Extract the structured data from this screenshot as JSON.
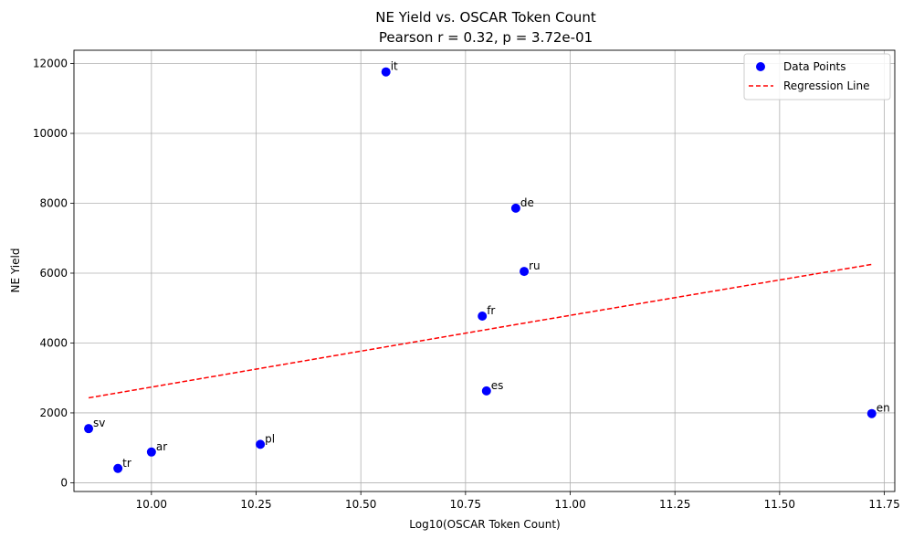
{
  "chart_data": {
    "type": "scatter",
    "title": "NE Yield vs. OSCAR Token Count",
    "subtitle": "Pearson r = 0.32, p = 3.72e-01",
    "xlabel": "Log10(OSCAR Token Count)",
    "ylabel": "NE Yield",
    "xlim": [
      9.815,
      11.775
    ],
    "ylim": [
      -250,
      12380
    ],
    "xticks": [
      10.0,
      10.25,
      10.5,
      10.75,
      11.0,
      11.25,
      11.5,
      11.75
    ],
    "xtick_labels": [
      "10.00",
      "10.25",
      "10.50",
      "10.75",
      "11.00",
      "11.25",
      "11.50",
      "11.75"
    ],
    "yticks": [
      0,
      2000,
      4000,
      6000,
      8000,
      10000,
      12000
    ],
    "ytick_labels": [
      "0",
      "2000",
      "4000",
      "6000",
      "8000",
      "10000",
      "12000"
    ],
    "grid": true,
    "legend_position": "top-right",
    "series": [
      {
        "name": "Data Points",
        "kind": "scatter",
        "color": "#0000ff",
        "points": [
          {
            "label": "it",
            "x": 10.56,
            "y": 11760
          },
          {
            "label": "de",
            "x": 10.87,
            "y": 7860
          },
          {
            "label": "ru",
            "x": 10.89,
            "y": 6050
          },
          {
            "label": "fr",
            "x": 10.79,
            "y": 4770
          },
          {
            "label": "es",
            "x": 10.8,
            "y": 2630
          },
          {
            "label": "en",
            "x": 11.72,
            "y": 1980
          },
          {
            "label": "sv",
            "x": 9.85,
            "y": 1550
          },
          {
            "label": "pl",
            "x": 10.26,
            "y": 1100
          },
          {
            "label": "ar",
            "x": 10.0,
            "y": 880
          },
          {
            "label": "tr",
            "x": 9.92,
            "y": 410
          }
        ]
      },
      {
        "name": "Regression Line",
        "kind": "line",
        "style": "dashed",
        "color": "#ff0000",
        "x": [
          9.85,
          10.89,
          11.72
        ],
        "y": [
          2430,
          4570,
          6250
        ]
      }
    ]
  }
}
